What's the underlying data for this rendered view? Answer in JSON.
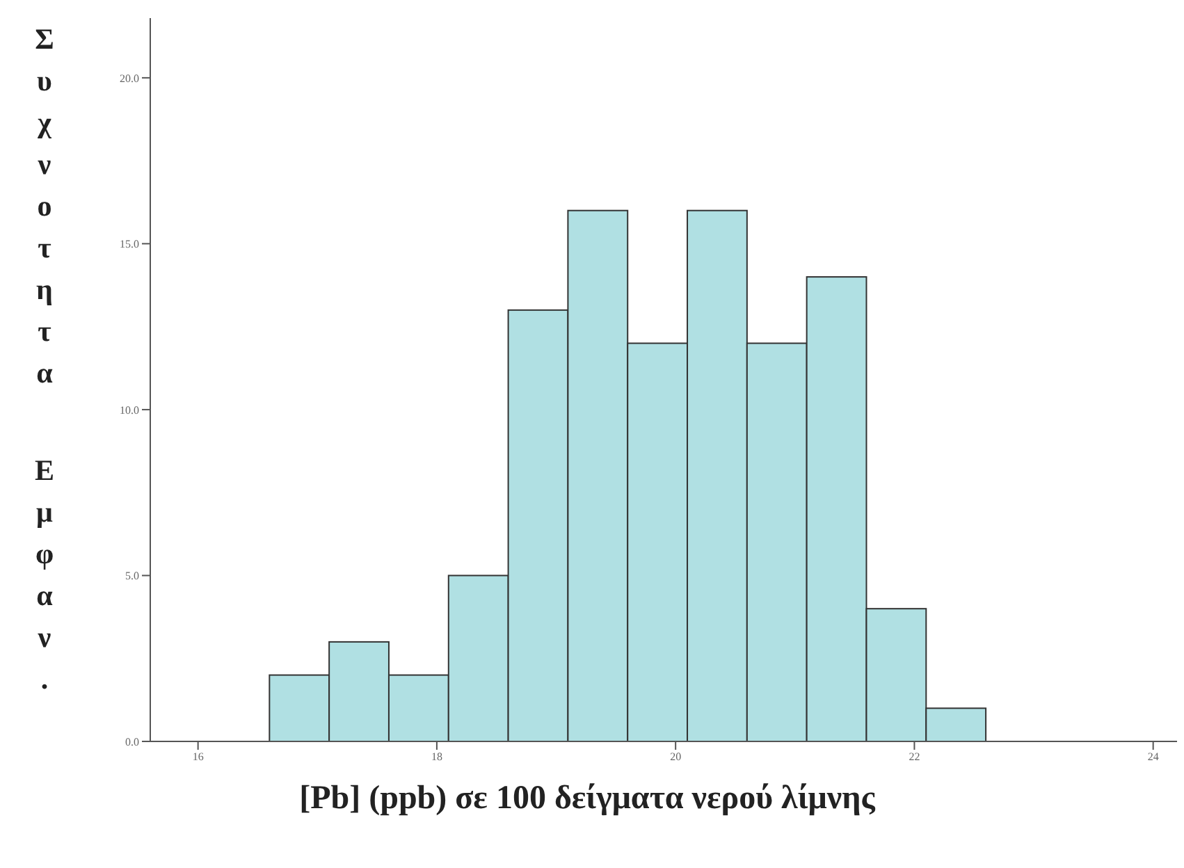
{
  "chart_data": {
    "type": "histogram",
    "xlabel": "[Pb] (ppb) σε 100 δείγματα νερού λίμνης",
    "ylabel": "Συχνοτητα Εμφαν.",
    "bins": [
      16.6,
      17.1,
      17.6,
      18.1,
      18.6,
      19.1,
      19.6,
      20.1,
      20.6,
      21.1,
      21.6,
      22.1,
      22.6
    ],
    "values": [
      2,
      3,
      2,
      5,
      13,
      16,
      12,
      16,
      12,
      14,
      4,
      1
    ],
    "color": "#b0e0e3",
    "xlim": [
      15.6,
      24.2
    ],
    "xticks": [
      16,
      18,
      20,
      22,
      24
    ],
    "ylim": [
      0,
      21.8
    ],
    "yticks": [
      {
        "value": 0,
        "label": "0.0"
      },
      {
        "value": 5,
        "label": "5.0"
      },
      {
        "value": 10,
        "label": "10.0"
      },
      {
        "value": 15,
        "label": "15.0"
      },
      {
        "value": 20,
        "label": "20.0"
      }
    ],
    "grid": false
  }
}
